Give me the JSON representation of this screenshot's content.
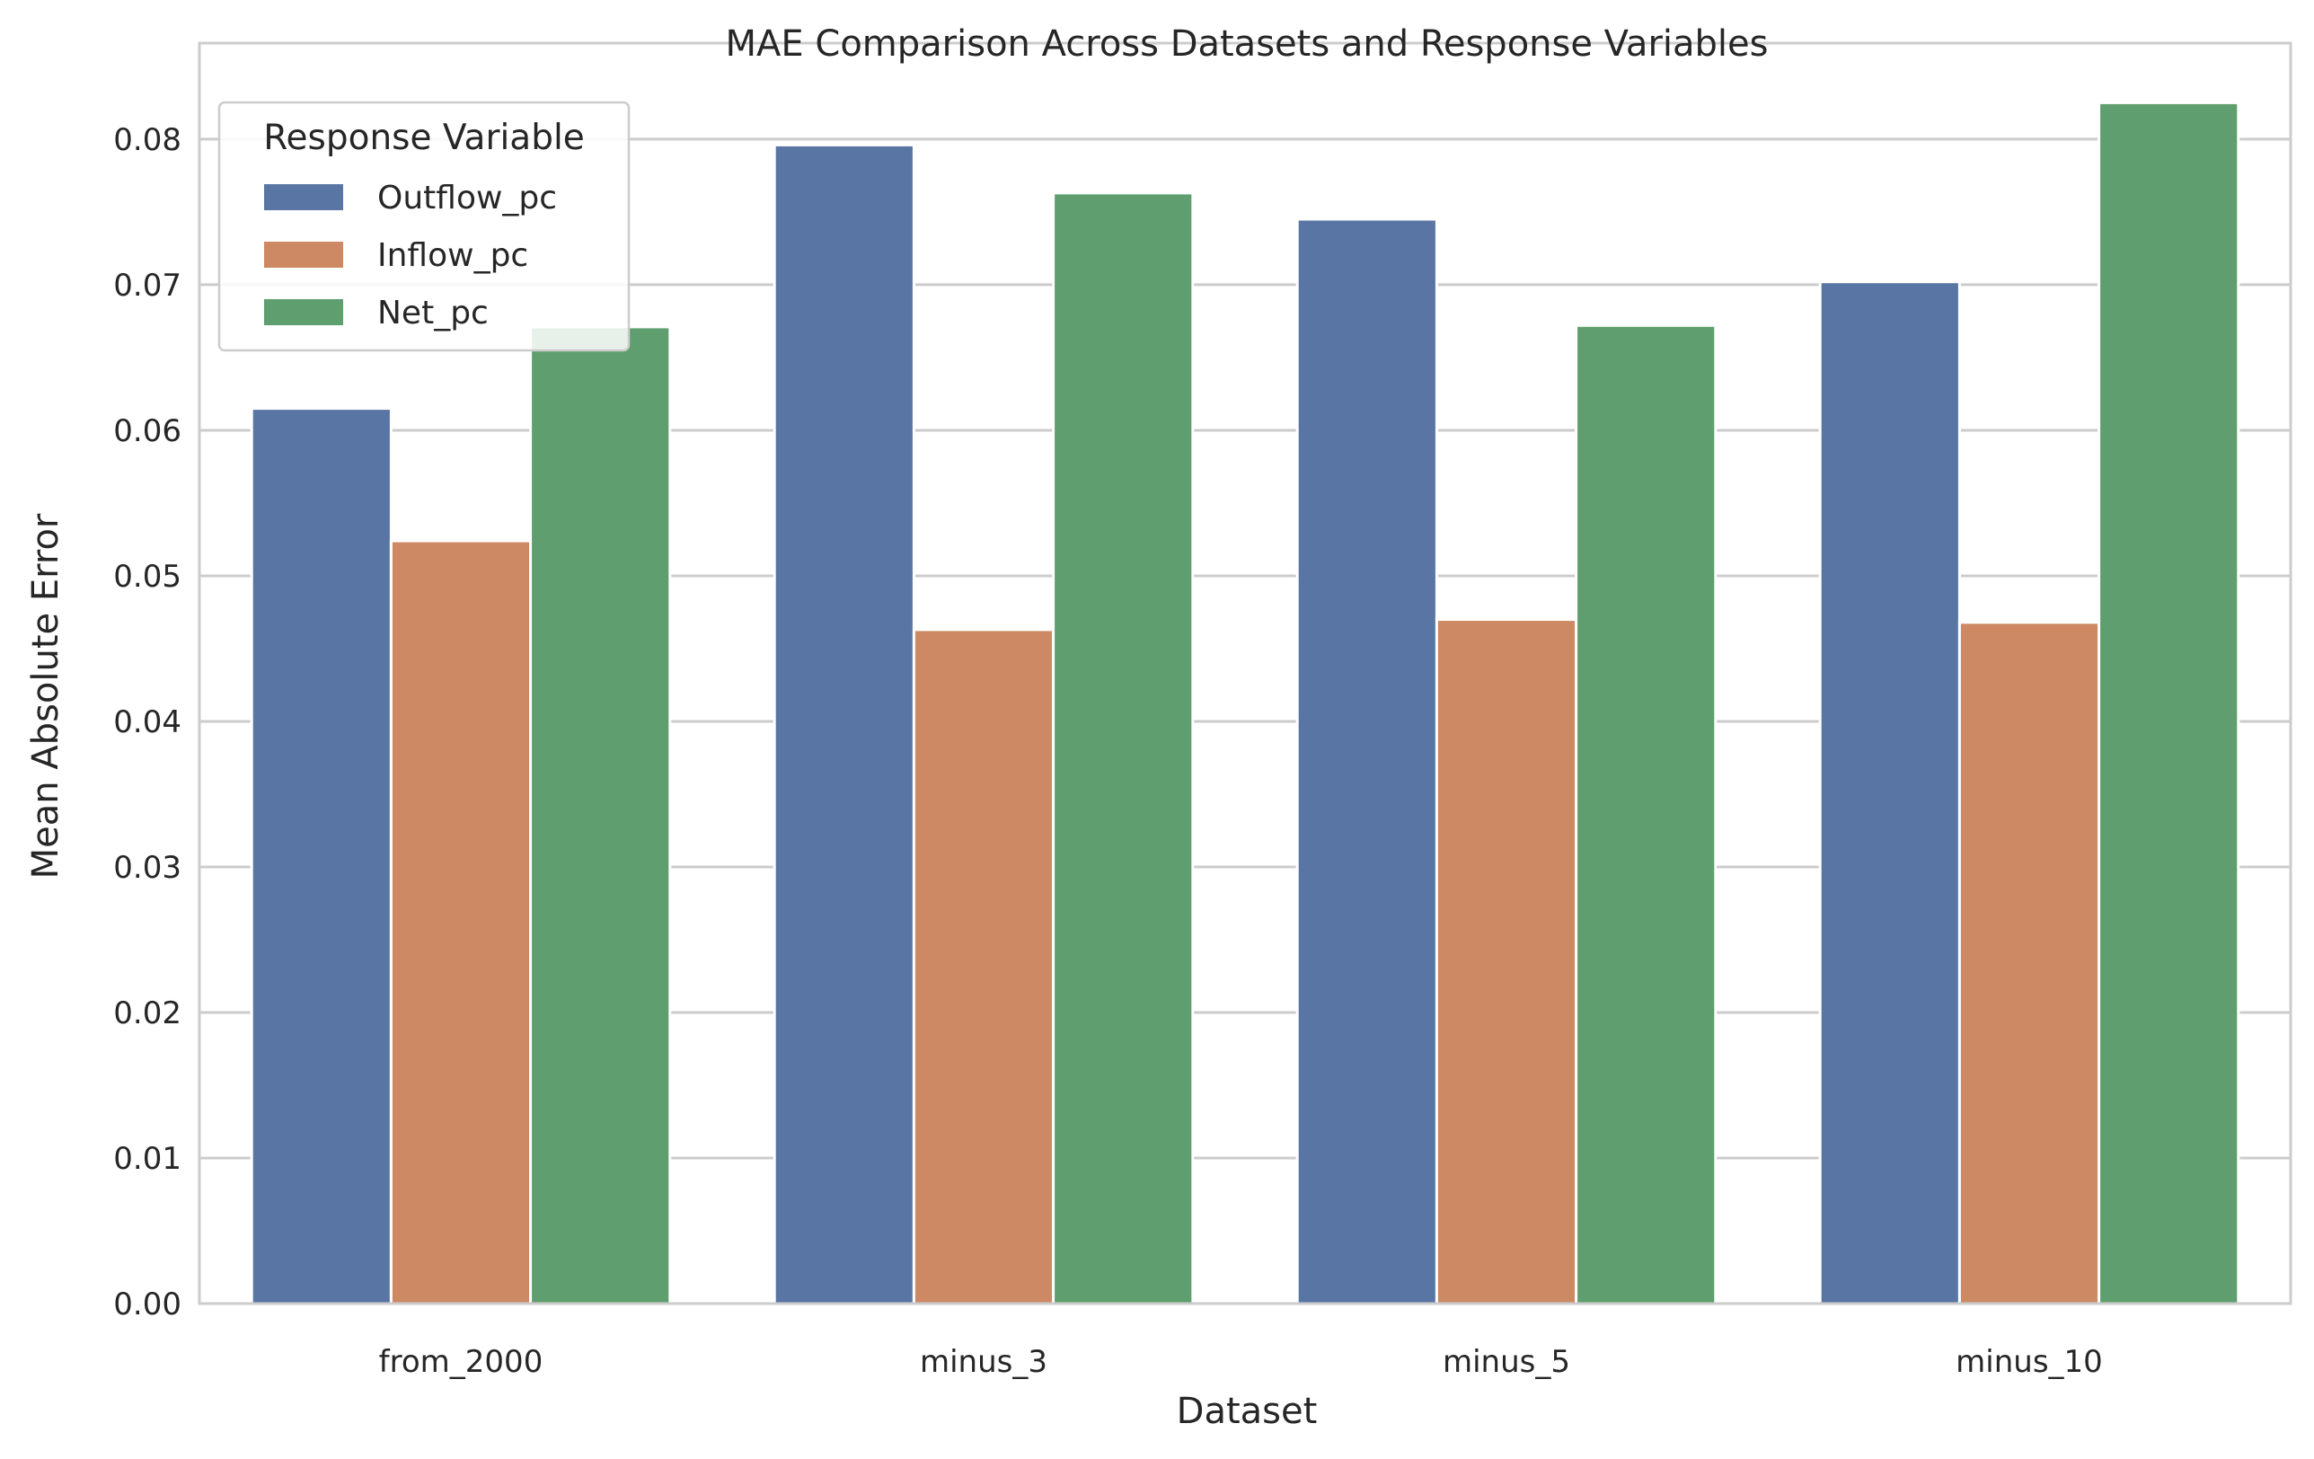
{
  "chart_data": {
    "type": "bar",
    "title": "MAE Comparison Across Datasets and Response Variables",
    "xlabel": "Dataset",
    "ylabel": "Mean Absolute Error",
    "categories": [
      "from_2000",
      "minus_3",
      "minus_5",
      "minus_10"
    ],
    "ylim": [
      0,
      0.0866
    ],
    "yticks": [
      0.0,
      0.01,
      0.02,
      0.03,
      0.04,
      0.05,
      0.06,
      0.07,
      0.08
    ],
    "ytick_labels": [
      "0.00",
      "0.01",
      "0.02",
      "0.03",
      "0.04",
      "0.05",
      "0.06",
      "0.07",
      "0.08"
    ],
    "grid": "horizontal",
    "legend": {
      "title": "Response Variable",
      "placement": "top-left"
    },
    "series": [
      {
        "name": "Outflow_pc",
        "color": "#5875a4",
        "values": [
          0.0615,
          0.0796,
          0.0745,
          0.0702
        ]
      },
      {
        "name": "Inflow_pc",
        "color": "#cc8963",
        "values": [
          0.0524,
          0.0463,
          0.047,
          0.0468
        ]
      },
      {
        "name": "Net_pc",
        "color": "#5f9e6e",
        "values": [
          0.0671,
          0.0763,
          0.0672,
          0.0825
        ]
      }
    ]
  }
}
